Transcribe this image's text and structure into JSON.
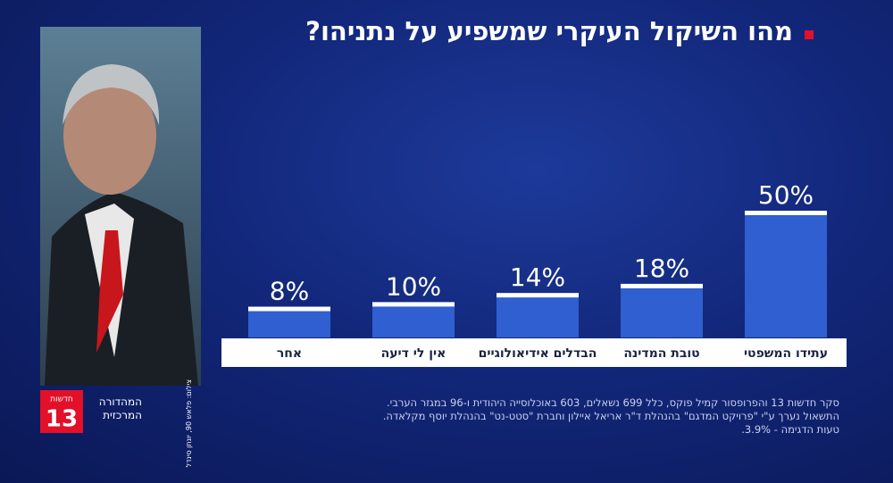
{
  "chart_data": {
    "type": "bar",
    "title": "מהו השיקול העיקרי שמשפיע על נתניהו?",
    "categories": [
      "עתידו המשפטי",
      "טובת המדינה",
      "הבדלים אידיאולוגיים",
      "אין לי דיעה",
      "אחר"
    ],
    "values": [
      50,
      18,
      14,
      10,
      8
    ],
    "value_labels": [
      "50%",
      "18%",
      "14%",
      "10%",
      "8%"
    ],
    "color": "#2f5fd0",
    "notes": [
      "סקר חדשות 13 והפרופסור קמיל פוקס, כלל 699 נשאלים, 603 באוכלוסייה היהודית ו-96 במגזר הערבי.",
      "התשאול נערך ע\"י \"פרויקט המדגם\" בהנהלת ד\"ר אריאל איילון וחברת \"סטט-נט\" בהנהלת יוסף מקלאדה.",
      "טעות הדגימה - 3.9%."
    ],
    "logo": {
      "top": "חדשות",
      "number": "13"
    },
    "program": [
      "המהדורה",
      "המרכזית"
    ],
    "photo_credit": "צילום: פלאש 90, יונתן סינדל"
  }
}
